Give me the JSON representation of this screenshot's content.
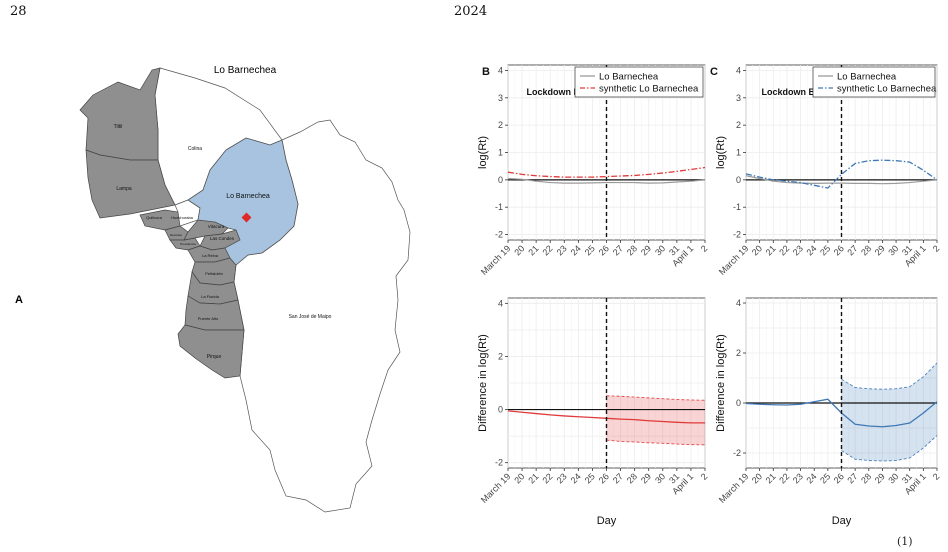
{
  "page": {
    "number": "28",
    "year": "2024",
    "footer": "(1)"
  },
  "map": {
    "panel_letter": "A",
    "title": "Lo Barnechea",
    "communes": [
      {
        "label": "Tiltil"
      },
      {
        "label": "Colina"
      },
      {
        "label": "Lampa"
      },
      {
        "label": "Quilicura"
      },
      {
        "label": "Huechuraba"
      },
      {
        "label": "Vitacura"
      },
      {
        "label": "Las Condes"
      },
      {
        "label": "Recoleta"
      },
      {
        "label": "Providencia"
      },
      {
        "label": "La Reina"
      },
      {
        "label": "Peñalolén"
      },
      {
        "label": "La Florida"
      },
      {
        "label": "Puente Alto"
      },
      {
        "label": "Pirque"
      },
      {
        "label": "San José de Maipo"
      },
      {
        "label": "Lo Barnechea"
      }
    ],
    "colors": {
      "highlight": "#a7c3df",
      "neighbor": "#8f8f8f",
      "marker": "#e02a2a"
    }
  },
  "chart_data": [
    {
      "panel": "B",
      "type": "line",
      "x": [
        "March 19",
        "20",
        "21",
        "22",
        "23",
        "24",
        "25",
        "26",
        "27",
        "28",
        "29",
        "30",
        "31",
        "April 1",
        "2"
      ],
      "ylabel": "log(Rt)",
      "ylim": [
        -2.2,
        4.2
      ],
      "yticks": [
        "-2",
        "-1",
        "0",
        "1",
        "2",
        "3",
        "4"
      ],
      "annotation": "Lockdown Begins",
      "vline_index": 7,
      "series": [
        {
          "name": "Lo Barnechea",
          "style": "solid",
          "color": "#9a9a9a",
          "values": [
            0.05,
            0.02,
            -0.05,
            -0.1,
            -0.12,
            -0.12,
            -0.11,
            -0.1,
            -0.1,
            -0.1,
            -0.12,
            -0.11,
            -0.08,
            -0.05,
            0.0
          ]
        },
        {
          "name": "synthetic Lo Barnechea",
          "style": "dashdot",
          "color": "#e03a3a",
          "values": [
            0.28,
            0.2,
            0.15,
            0.12,
            0.1,
            0.1,
            0.1,
            0.12,
            0.14,
            0.16,
            0.2,
            0.25,
            0.31,
            0.38,
            0.45
          ]
        }
      ],
      "legend": "top-right"
    },
    {
      "panel": "C",
      "type": "line",
      "x": [
        "March 19",
        "20",
        "21",
        "22",
        "23",
        "24",
        "25",
        "26",
        "27",
        "28",
        "29",
        "30",
        "31",
        "April 1",
        "2"
      ],
      "ylabel": "log(Rt)",
      "ylim": [
        -2.2,
        4.2
      ],
      "yticks": [
        "-2",
        "-1",
        "0",
        "1",
        "2",
        "3",
        "4"
      ],
      "annotation": "Lockdown Begins",
      "vline_index": 7,
      "series": [
        {
          "name": "Lo Barnechea",
          "style": "solid",
          "color": "#9a9a9a",
          "values": [
            0.15,
            0.05,
            -0.05,
            -0.1,
            -0.12,
            -0.13,
            -0.12,
            -0.12,
            -0.13,
            -0.13,
            -0.14,
            -0.13,
            -0.1,
            -0.05,
            0.0
          ]
        },
        {
          "name": "synthetic Lo Barnechea",
          "style": "dashdot",
          "color": "#3f79b5",
          "values": [
            0.22,
            0.1,
            0.0,
            -0.05,
            -0.1,
            -0.2,
            -0.3,
            0.2,
            0.6,
            0.7,
            0.72,
            0.7,
            0.65,
            0.35,
            0.0
          ]
        }
      ],
      "legend": "top-right"
    },
    {
      "panel": "B-lower",
      "type": "area",
      "x": [
        "March 19",
        "20",
        "21",
        "22",
        "23",
        "24",
        "25",
        "26",
        "27",
        "28",
        "29",
        "30",
        "31",
        "April 1",
        "2"
      ],
      "xlabel": "Day",
      "ylabel": "Difference in log(Rt)",
      "ylim": [
        -2.2,
        4.2
      ],
      "yticks": [
        "-2",
        "0",
        "2",
        "4"
      ],
      "vline_index": 7,
      "series": [
        {
          "name": "difference",
          "color": "#e03a3a",
          "values": [
            -0.05,
            -0.1,
            -0.15,
            -0.2,
            -0.24,
            -0.27,
            -0.3,
            -0.33,
            -0.36,
            -0.38,
            -0.42,
            -0.45,
            -0.48,
            -0.5,
            -0.5
          ],
          "lower": [
            null,
            null,
            null,
            null,
            null,
            null,
            null,
            -1.15,
            -1.2,
            -1.22,
            -1.25,
            -1.27,
            -1.3,
            -1.32,
            -1.33
          ],
          "upper": [
            null,
            null,
            null,
            null,
            null,
            null,
            null,
            0.52,
            0.5,
            0.47,
            0.44,
            0.41,
            0.38,
            0.36,
            0.35
          ]
        }
      ]
    },
    {
      "panel": "C-lower",
      "type": "area",
      "x": [
        "March 19",
        "20",
        "21",
        "22",
        "23",
        "24",
        "25",
        "26",
        "27",
        "28",
        "29",
        "30",
        "31",
        "April 1",
        "2"
      ],
      "xlabel": "Day",
      "ylabel": "Difference in log(Rt)",
      "ylim": [
        -2.6,
        4.2
      ],
      "yticks": [
        "-2",
        "0",
        "2",
        "4"
      ],
      "vline_index": 7,
      "series": [
        {
          "name": "difference",
          "color": "#3f79b5",
          "values": [
            -0.02,
            -0.05,
            -0.07,
            -0.08,
            -0.05,
            0.05,
            0.15,
            -0.4,
            -0.85,
            -0.92,
            -0.95,
            -0.9,
            -0.8,
            -0.4,
            0.05
          ],
          "lower": [
            null,
            null,
            null,
            null,
            null,
            null,
            null,
            -1.9,
            -2.25,
            -2.3,
            -2.32,
            -2.3,
            -2.2,
            -1.8,
            -1.3
          ],
          "upper": [
            null,
            null,
            null,
            null,
            null,
            null,
            null,
            0.95,
            0.62,
            0.57,
            0.55,
            0.57,
            0.65,
            1.05,
            1.6
          ]
        }
      ]
    }
  ]
}
